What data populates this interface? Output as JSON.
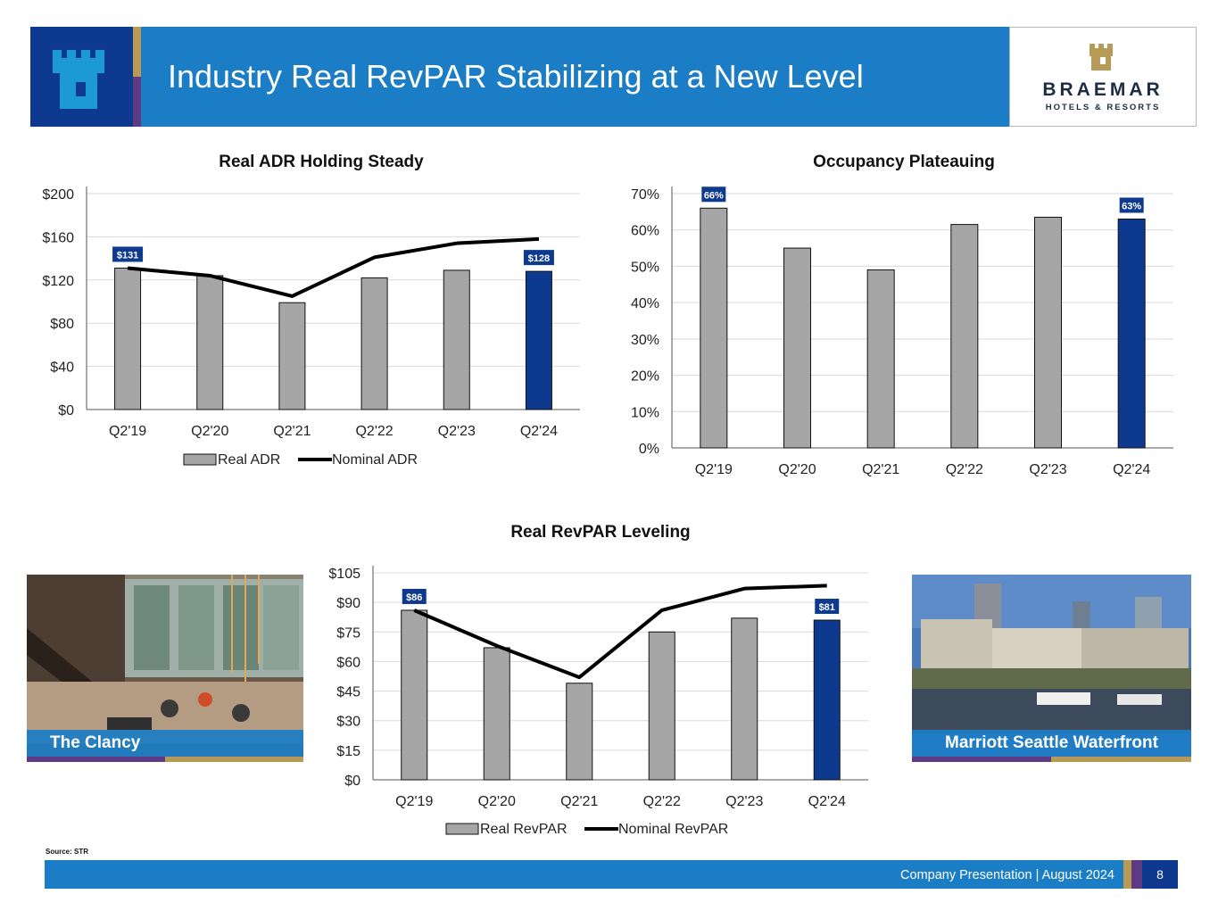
{
  "header": {
    "title": "Industry Real RevPAR Stabilizing at a New Level"
  },
  "brand": {
    "name": "BRAEMAR",
    "tagline": "HOTELS & RESORTS",
    "icon": "castle-tower-icon"
  },
  "colors": {
    "header_blue": "#1b7dc6",
    "navy": "#0d3a8e",
    "gold": "#b69a55",
    "purple": "#5e3a83",
    "bar_gray": "#a6a6a6",
    "highlight_bar": "#0d3a8e"
  },
  "photos": {
    "left_caption": "The Clancy",
    "right_caption": "Marriott Seattle Waterfront"
  },
  "source": "Source: STR",
  "footer": {
    "text": "Company Presentation | August 2024",
    "page": "8"
  },
  "chart_data": [
    {
      "id": "adr",
      "type": "bar",
      "title": "Real ADR Holding Steady",
      "categories": [
        "Q2'19",
        "Q2'20",
        "Q2'21",
        "Q2'22",
        "Q2'23",
        "Q2'24"
      ],
      "series": [
        {
          "name": "Real ADR",
          "type": "bar",
          "values": [
            131,
            124,
            99,
            122,
            129,
            128
          ]
        },
        {
          "name": "Nominal ADR",
          "type": "line",
          "values": [
            131,
            124,
            105,
            141,
            154,
            158
          ]
        }
      ],
      "ylim": [
        0,
        200
      ],
      "yticks": [
        "$0",
        "$40",
        "$80",
        "$120",
        "$160",
        "$200"
      ],
      "ytick_values": [
        0,
        40,
        80,
        120,
        160,
        200
      ],
      "data_labels": [
        {
          "index": 0,
          "text": "$131"
        },
        {
          "index": 5,
          "text": "$128"
        }
      ],
      "highlight_index": 5,
      "legend": "bottom",
      "grid": true
    },
    {
      "id": "occ",
      "type": "bar",
      "title": "Occupancy Plateauing",
      "categories": [
        "Q2'19",
        "Q2'20",
        "Q2'21",
        "Q2'22",
        "Q2'23",
        "Q2'24"
      ],
      "series": [
        {
          "name": "Occupancy",
          "type": "bar",
          "values": [
            66,
            55,
            49,
            61.5,
            63.5,
            63
          ]
        }
      ],
      "ylim": [
        0,
        70
      ],
      "yticks": [
        "0%",
        "10%",
        "20%",
        "30%",
        "40%",
        "50%",
        "60%",
        "70%"
      ],
      "ytick_values": [
        0,
        10,
        20,
        30,
        40,
        50,
        60,
        70
      ],
      "data_labels": [
        {
          "index": 0,
          "text": "66%"
        },
        {
          "index": 5,
          "text": "63%"
        }
      ],
      "highlight_index": 5,
      "legend": "none",
      "grid": true
    },
    {
      "id": "revpar",
      "type": "bar",
      "title": "Real RevPAR Leveling",
      "categories": [
        "Q2'19",
        "Q2'20",
        "Q2'21",
        "Q2'22",
        "Q2'23",
        "Q2'24"
      ],
      "series": [
        {
          "name": "Real RevPAR",
          "type": "bar",
          "values": [
            86,
            67,
            49,
            75,
            82,
            81
          ]
        },
        {
          "name": "Nominal RevPAR",
          "type": "line",
          "values": [
            86,
            68,
            52,
            86,
            97,
            98.5
          ]
        }
      ],
      "ylim": [
        0,
        105
      ],
      "yticks": [
        "$0",
        "$15",
        "$30",
        "$45",
        "$60",
        "$75",
        "$90",
        "$105"
      ],
      "ytick_values": [
        0,
        15,
        30,
        45,
        60,
        75,
        90,
        105
      ],
      "data_labels": [
        {
          "index": 0,
          "text": "$86"
        },
        {
          "index": 5,
          "text": "$81"
        }
      ],
      "highlight_index": 5,
      "legend": "bottom",
      "grid": true
    }
  ]
}
